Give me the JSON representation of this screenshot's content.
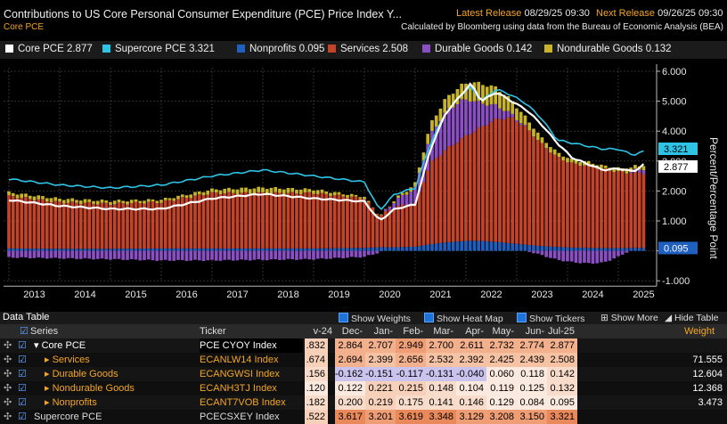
{
  "header": {
    "title": "Contributions to US Core Personal Consumer Expenditure (PCE) Price Index Y...",
    "latest_label": "Latest Release",
    "latest_value": "08/29/25 09:30",
    "next_label": "Next Release",
    "next_value": "09/26/25 09:30",
    "subtitle": "Core PCE",
    "credit": "Calculated by Bloomberg using data from the Bureau of Economic Analysis (BEA)"
  },
  "legend": [
    {
      "label": "Core PCE 2.877",
      "color": "#ffffff"
    },
    {
      "label": "Supercore PCE 3.321",
      "color": "#2ec4e6"
    },
    {
      "label": "Nonprofits 0.095",
      "color": "#1f5fbf"
    },
    {
      "label": "Services 2.508",
      "color": "#c4442a"
    },
    {
      "label": "Durable Goods 0.142",
      "color": "#8a4fc2"
    },
    {
      "label": "Nondurable Goods 0.132",
      "color": "#c8b42a"
    }
  ],
  "chart_data": {
    "type": "bar",
    "stacked": true,
    "ylabel": "Percent/Percentage Point",
    "ylim": [
      -1.0,
      6.0
    ],
    "y_ticks": [
      "6.000",
      "5.000",
      "4.000",
      "3.000",
      "2.000",
      "1.000",
      "0.000",
      "-1.000"
    ],
    "y_tick_values": [
      6,
      5,
      4,
      3,
      2,
      1,
      0,
      -1
    ],
    "x_ticks": [
      "2013",
      "2014",
      "2015",
      "2016",
      "2017",
      "2018",
      "2019",
      "2020",
      "2021",
      "2022",
      "2023",
      "2024",
      "2025"
    ],
    "x_start": "Jan 2013",
    "x_end": "Jul 2025",
    "grid": true,
    "series_keyframes": {
      "time": [
        2013.0,
        2014.0,
        2015.0,
        2016.0,
        2017.0,
        2018.0,
        2019.0,
        2020.0,
        2020.3,
        2020.6,
        2021.0,
        2021.3,
        2021.6,
        2021.9,
        2022.1,
        2022.3,
        2022.6,
        2022.9,
        2023.2,
        2023.5,
        2023.8,
        2024.1,
        2024.4,
        2024.7,
        2025.0,
        2025.3,
        2025.5
      ],
      "services": [
        1.75,
        1.55,
        1.5,
        1.55,
        1.85,
        1.85,
        1.85,
        1.65,
        1.05,
        1.35,
        1.45,
        2.7,
        3.1,
        3.4,
        3.6,
        3.8,
        4.1,
        4.2,
        3.9,
        3.4,
        3.0,
        2.8,
        2.75,
        2.65,
        2.55,
        2.5,
        2.508
      ],
      "nonprofits": [
        0.08,
        0.07,
        0.07,
        0.08,
        0.08,
        0.08,
        0.08,
        0.1,
        0.12,
        0.12,
        0.14,
        0.22,
        0.28,
        0.32,
        0.34,
        0.33,
        0.3,
        0.25,
        0.2,
        0.16,
        0.13,
        0.11,
        0.1,
        0.09,
        0.09,
        0.1,
        0.095
      ],
      "durable": [
        -0.22,
        -0.25,
        -0.28,
        -0.32,
        -0.32,
        -0.3,
        -0.28,
        -0.2,
        -0.05,
        0.2,
        0.5,
        0.95,
        1.25,
        1.3,
        1.1,
        0.8,
        0.45,
        0.12,
        0.0,
        -0.15,
        -0.3,
        -0.38,
        -0.42,
        -0.4,
        -0.2,
        0.08,
        0.142
      ],
      "nondurable": [
        0.12,
        0.12,
        0.1,
        0.08,
        0.12,
        0.18,
        0.12,
        0.06,
        0.0,
        0.05,
        0.15,
        0.35,
        0.45,
        0.5,
        0.6,
        0.65,
        0.6,
        0.45,
        0.3,
        0.2,
        0.15,
        0.12,
        0.12,
        0.1,
        0.12,
        0.13,
        0.132
      ],
      "core": [
        1.7,
        1.5,
        1.4,
        1.4,
        1.75,
        1.9,
        1.75,
        1.65,
        1.0,
        1.4,
        1.55,
        3.4,
        4.6,
        5.2,
        5.6,
        5.0,
        5.3,
        5.0,
        4.7,
        4.2,
        3.6,
        3.1,
        2.9,
        2.7,
        2.75,
        2.65,
        2.877
      ],
      "supercore": [
        2.4,
        2.2,
        2.1,
        2.2,
        2.5,
        2.7,
        2.5,
        2.3,
        1.35,
        1.9,
        2.1,
        3.6,
        4.6,
        5.2,
        5.5,
        5.0,
        5.4,
        5.2,
        4.9,
        4.4,
        3.7,
        3.6,
        3.5,
        3.4,
        3.4,
        3.2,
        3.321
      ]
    },
    "last_values": {
      "supercore": "3.321",
      "core": "2.877",
      "nonprofits": "0.095"
    }
  },
  "table": {
    "title": "Data Table",
    "toggles": [
      "Show Weights",
      "Show Heat Map",
      "Show Tickers",
      "Show More",
      "Hide Table"
    ],
    "headers": {
      "series": "Series",
      "ticker": "Ticker",
      "weight": "Weight"
    },
    "months": [
      "v-24",
      "Dec-24",
      "Jan-25",
      "Feb-25",
      "Mar-25",
      "Apr-25",
      "May-25",
      "Jun-25",
      "Jul-25"
    ],
    "rows": [
      {
        "name": "Core PCE",
        "ticker": "PCE CYOY Index",
        "values": [
          ".832",
          "2.864",
          "2.707",
          "2.949",
          "2.700",
          "2.611",
          "2.732",
          "2.774",
          "2.877"
        ],
        "weight": "",
        "indent": 0,
        "arrow": "▾"
      },
      {
        "name": "Services",
        "ticker": "ECANLW14 Index",
        "values": [
          ".674",
          "2.694",
          "2.399",
          "2.656",
          "2.532",
          "2.392",
          "2.425",
          "2.439",
          "2.508"
        ],
        "weight": "71.555",
        "indent": 1,
        "arrow": "▸"
      },
      {
        "name": "Durable Goods",
        "ticker": "ECANGWSI Index",
        "values": [
          ".156",
          "-0.162",
          "-0.151",
          "-0.117",
          "-0.131",
          "-0.040",
          "0.060",
          "0.118",
          "0.142"
        ],
        "weight": "12.604",
        "indent": 1,
        "arrow": "▸"
      },
      {
        "name": "Nondurable Goods",
        "ticker": "ECANH3TJ Index",
        "values": [
          ".120",
          "0.122",
          "0.221",
          "0.215",
          "0.148",
          "0.104",
          "0.119",
          "0.125",
          "0.132"
        ],
        "weight": "12.368",
        "indent": 1,
        "arrow": "▸"
      },
      {
        "name": "Nonprofits",
        "ticker": "ECANT7VOB Index",
        "values": [
          ".182",
          "0.200",
          "0.219",
          "0.175",
          "0.141",
          "0.146",
          "0.129",
          "0.084",
          "0.095"
        ],
        "weight": "3.473",
        "indent": 1,
        "arrow": "▸"
      },
      {
        "name": "Supercore PCE",
        "ticker": "PCECSXEY Index",
        "values": [
          ".522",
          "3.617",
          "3.201",
          "3.619",
          "3.348",
          "3.129",
          "3.208",
          "3.150",
          "3.321"
        ],
        "weight": "",
        "indent": 0,
        "arrow": ""
      }
    ]
  }
}
